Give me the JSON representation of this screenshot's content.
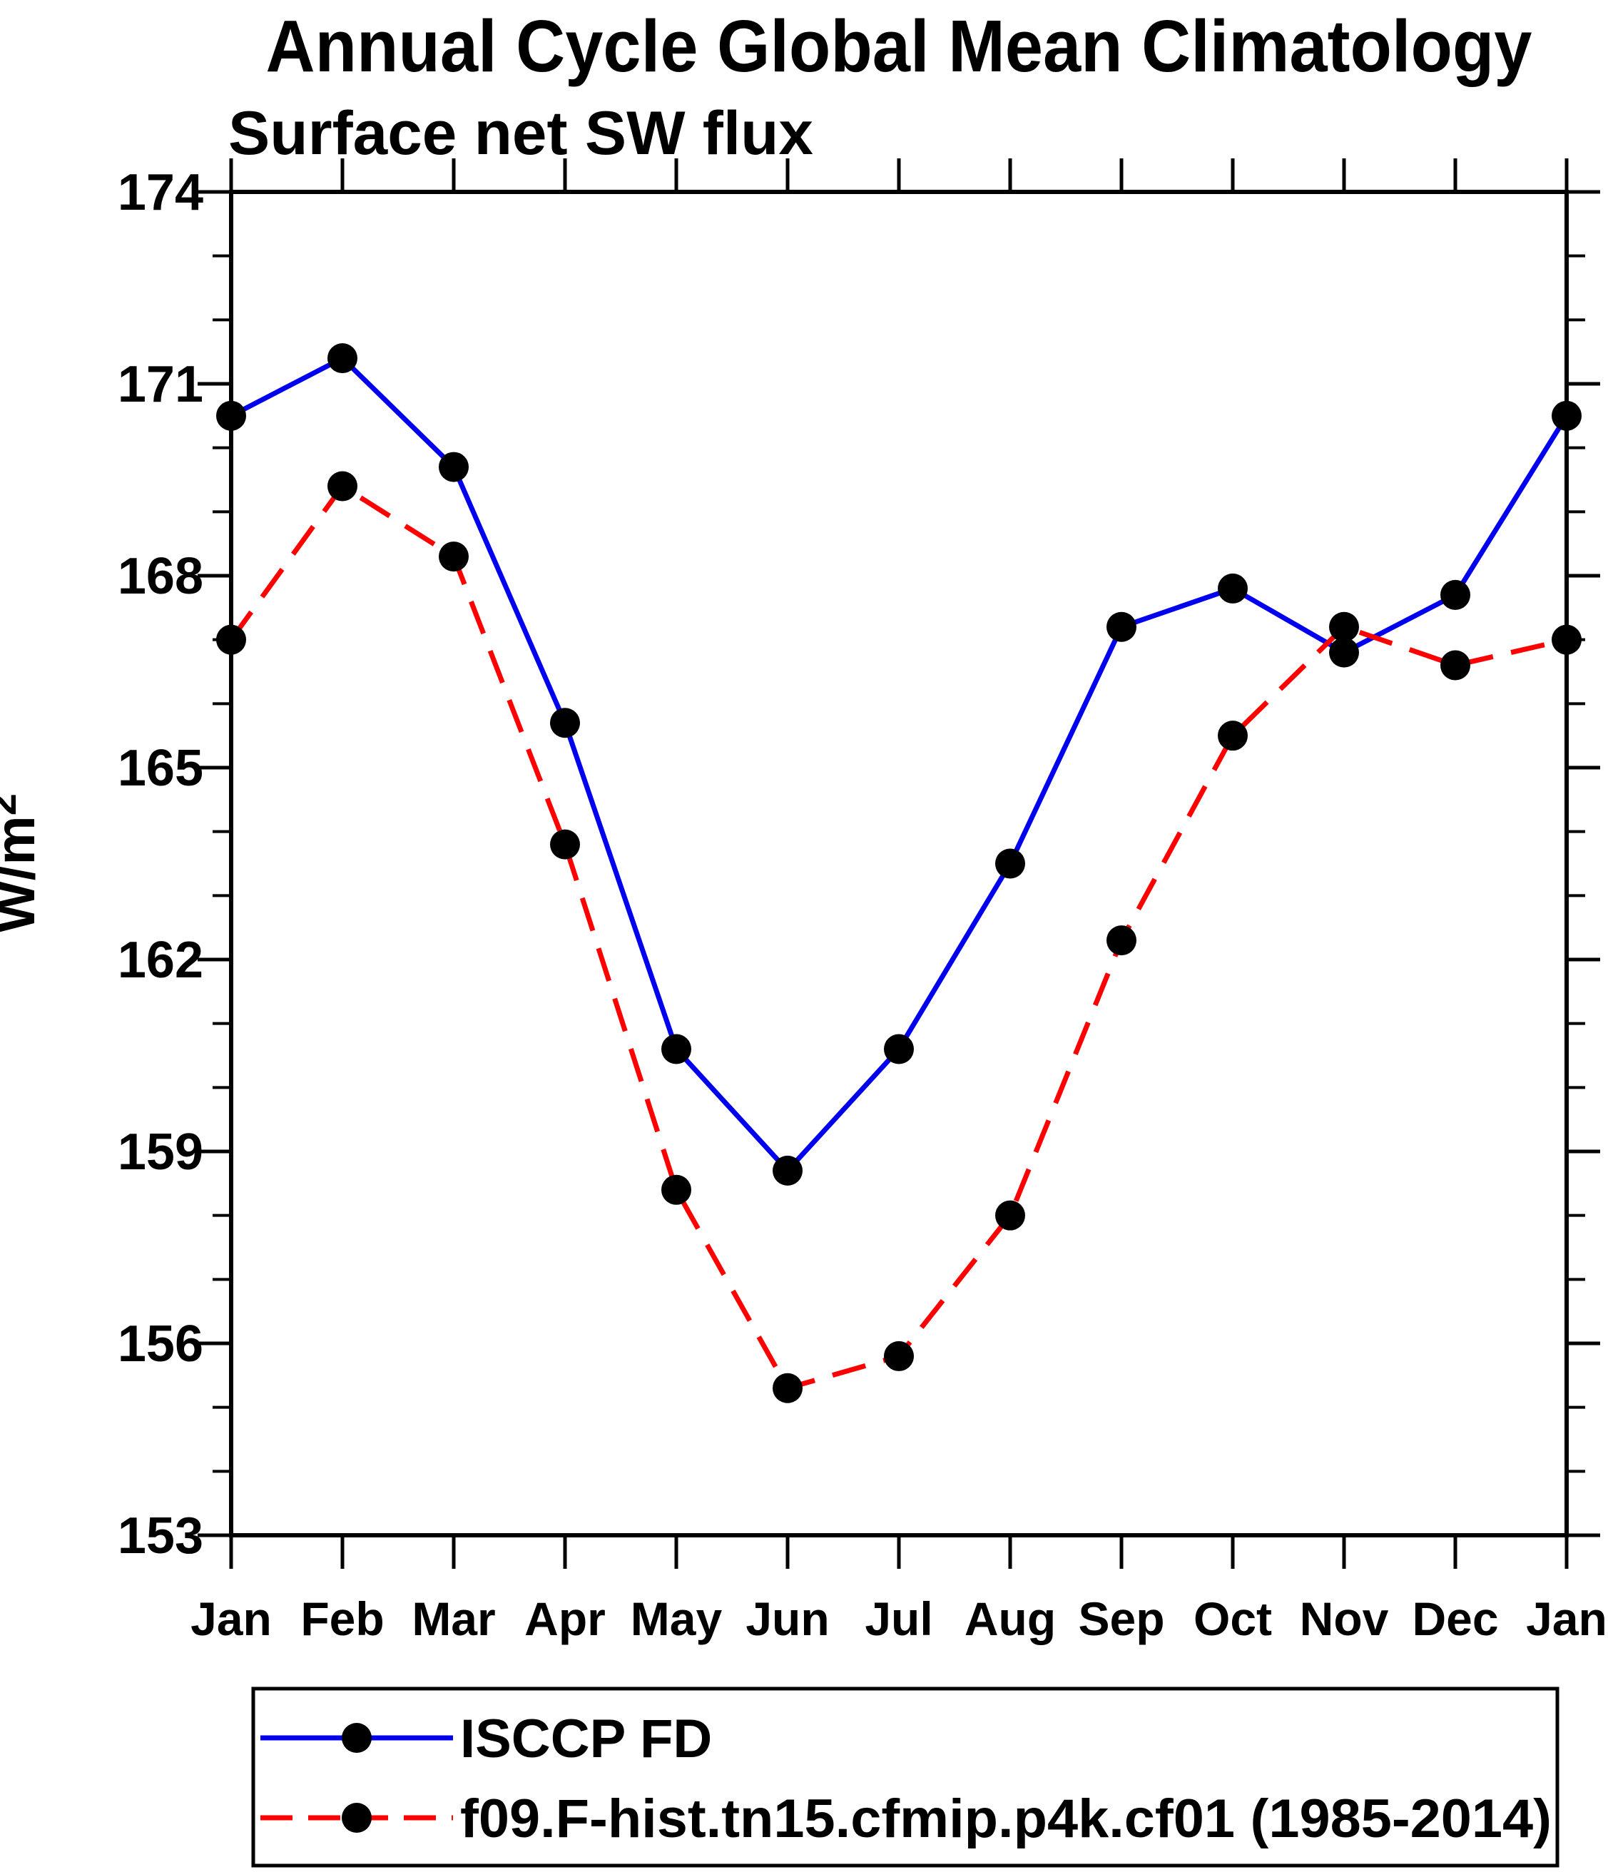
{
  "figure": {
    "title": "Annual Cycle Global Mean Climatology",
    "subtitle": "Surface net SW flux",
    "ylabel_base": "W/m",
    "ylabel_exponent": "2"
  },
  "legend": {
    "items": [
      {
        "label": "ISCCP FD"
      },
      {
        "label": "f09.F-hist.tn15.cfmip.p4k.cf01 (1985-2014)"
      }
    ]
  },
  "chart_data": {
    "type": "line",
    "title": "Annual Cycle Global Mean Climatology",
    "subtitle": "Surface net SW flux",
    "ylabel": "W/m^2",
    "xlabel": "",
    "categories": [
      "Jan",
      "Feb",
      "Mar",
      "Apr",
      "May",
      "Jun",
      "Jul",
      "Aug",
      "Sep",
      "Oct",
      "Nov",
      "Dec",
      "Jan"
    ],
    "ylim": [
      153,
      174
    ],
    "yticks_major": [
      153,
      156,
      159,
      162,
      165,
      168,
      171,
      174
    ],
    "ytick_minor_step": 1,
    "grid": false,
    "legend_position": "bottom",
    "frame_color": "#000000",
    "marker_color": "#000000",
    "series": [
      {
        "name": "ISCCP FD",
        "color": "#0000ee",
        "style": "solid",
        "marker": "filled-circle",
        "values": [
          170.5,
          171.4,
          169.7,
          165.7,
          160.6,
          158.7,
          160.6,
          163.5,
          167.2,
          167.8,
          166.8,
          167.7,
          170.5
        ]
      },
      {
        "name": "f09.F-hist.tn15.cfmip.p4k.cf01 (1985-2014)",
        "color": "#ff0000",
        "style": "dashed",
        "marker": "filled-circle",
        "values": [
          167.0,
          169.4,
          168.3,
          163.8,
          158.4,
          155.3,
          155.8,
          158.0,
          162.3,
          165.5,
          167.2,
          166.6,
          167.0
        ]
      }
    ]
  }
}
